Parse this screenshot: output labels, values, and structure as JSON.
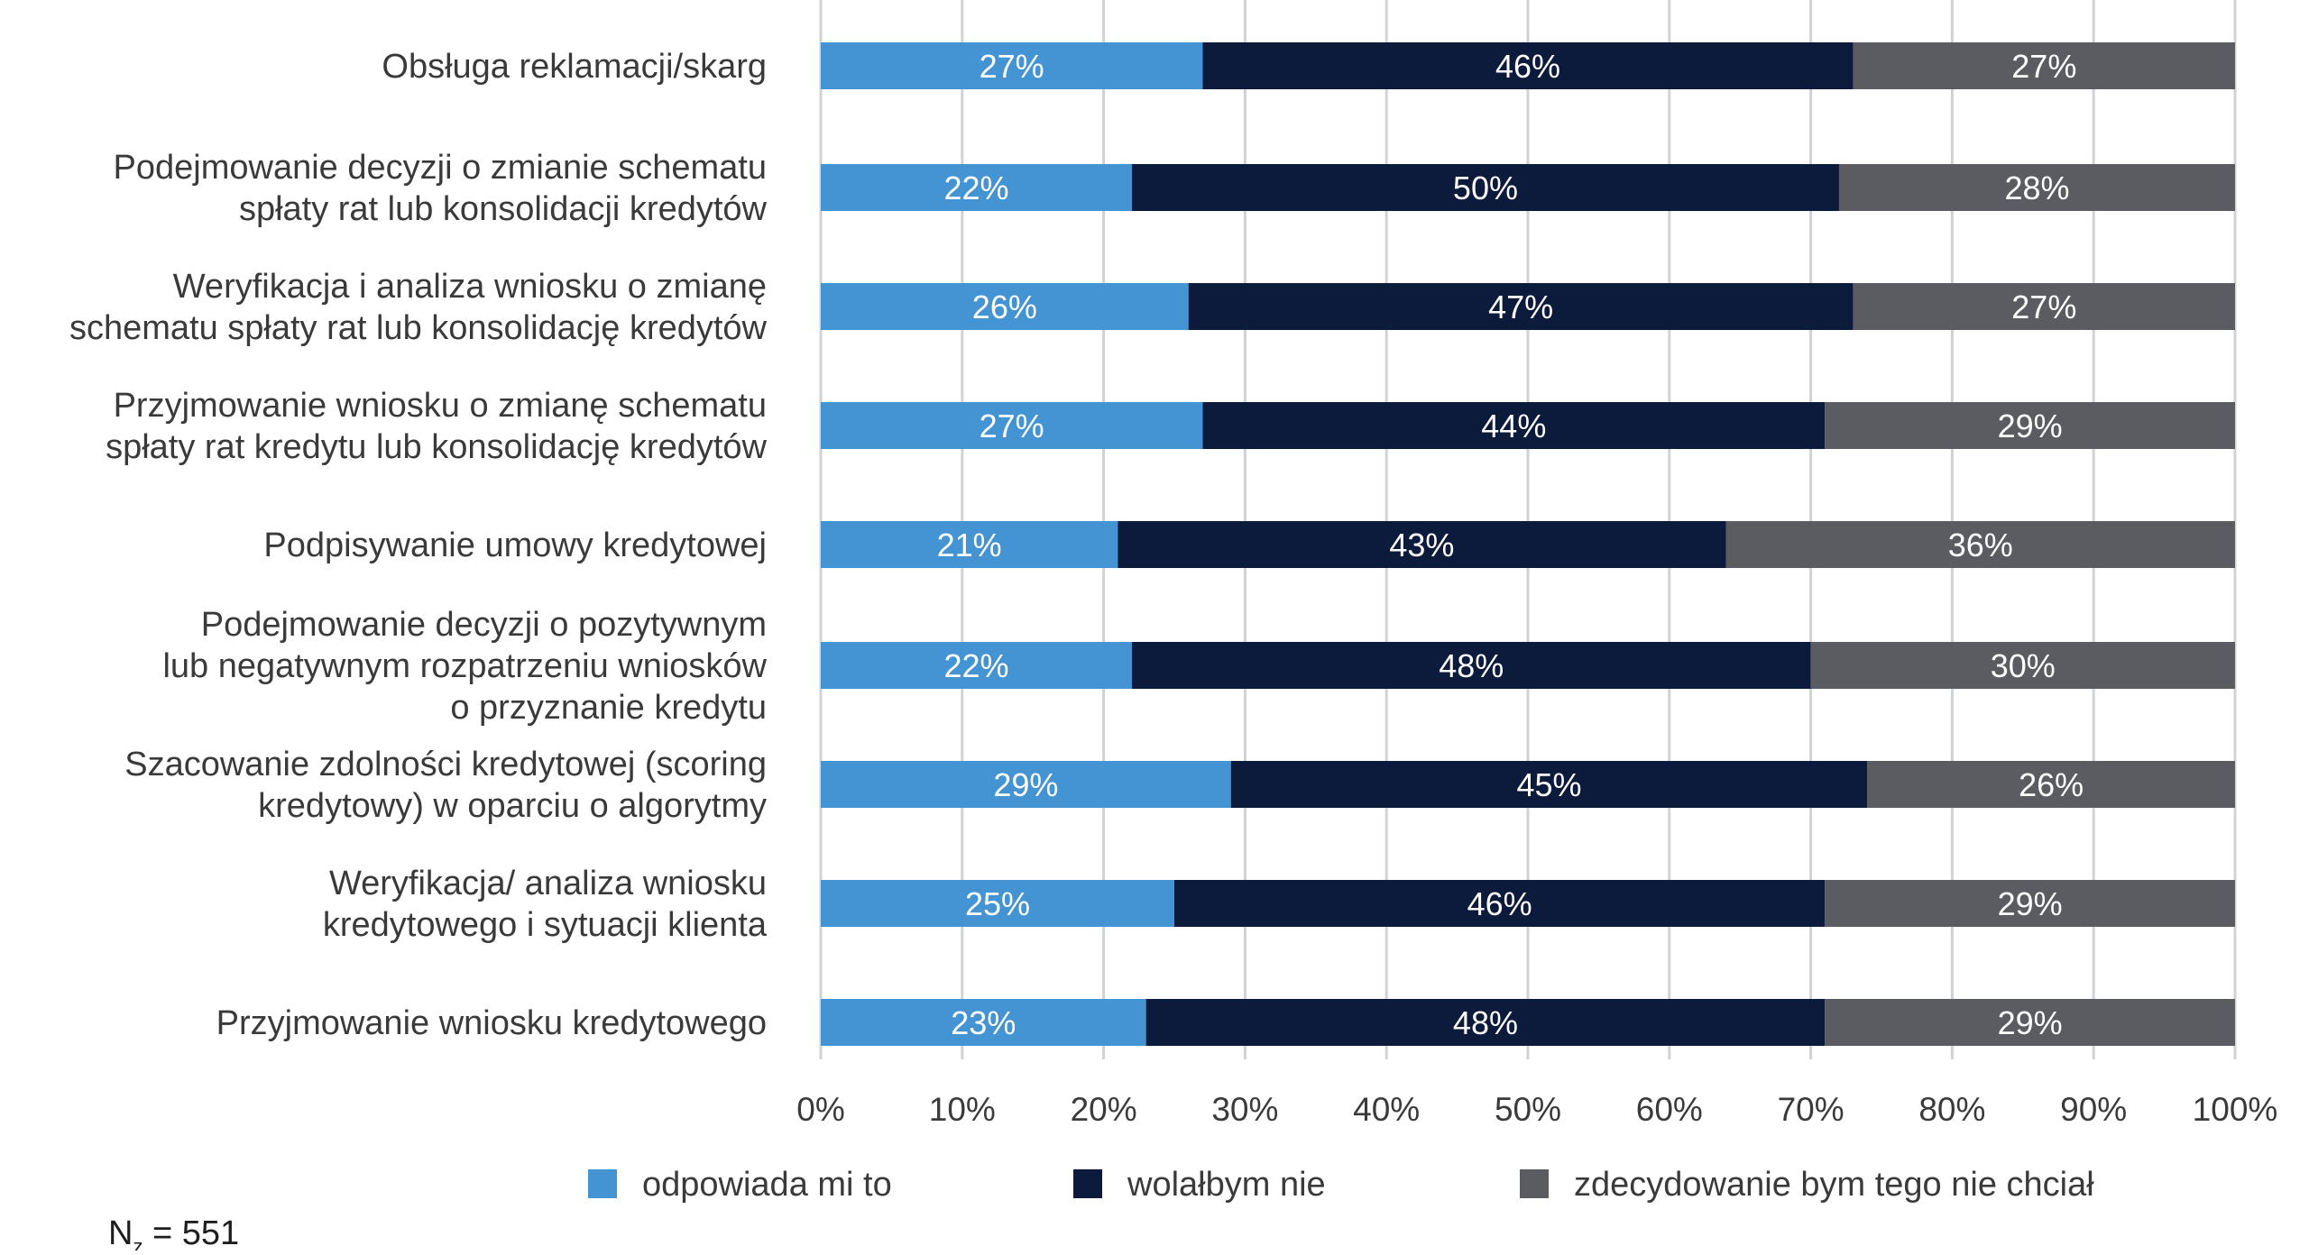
{
  "chart_data": {
    "type": "bar",
    "orientation": "horizontal",
    "stacked": true,
    "categories": [
      [
        "Obsługa reklamacji/skarg"
      ],
      [
        "Podejmowanie decyzji o zmianie schematu",
        "spłaty rat lub konsolidacji kredytów"
      ],
      [
        "Weryfikacja i analiza wniosku o zmianę",
        "schematu spłaty rat lub konsolidację kredytów"
      ],
      [
        "Przyjmowanie wniosku o zmianę schematu",
        "spłaty rat kredytu lub konsolidację kredytów"
      ],
      [
        "Podpisywanie umowy kredytowej"
      ],
      [
        "Podejmowanie decyzji o pozytywnym",
        "lub negatywnym rozpatrzeniu wniosków",
        "o przyznanie kredytu"
      ],
      [
        "Szacowanie zdolności kredytowej (scoring",
        "kredytowy) w oparciu o algorytmy"
      ],
      [
        "Weryfikacja/ analiza wniosku",
        "kredytowego i sytuacji klienta"
      ],
      [
        "Przyjmowanie wniosku kredytowego"
      ]
    ],
    "series": [
      {
        "name": "odpowiada mi to",
        "color": "#4493d3",
        "values": [
          27,
          22,
          26,
          27,
          21,
          22,
          29,
          25,
          23
        ]
      },
      {
        "name": "wolałbym nie",
        "color": "#0c1a3c",
        "values": [
          46,
          50,
          47,
          44,
          43,
          48,
          45,
          46,
          48
        ]
      },
      {
        "name": "zdecydowanie bym tego nie chciał",
        "color": "#5b5c61",
        "values": [
          27,
          28,
          27,
          29,
          36,
          30,
          26,
          29,
          29
        ]
      }
    ],
    "xlim": [
      0,
      100
    ],
    "ticks": [
      "0%",
      "10%",
      "20%",
      "30%",
      "40%",
      "50%",
      "60%",
      "70%",
      "80%",
      "90%",
      "100%"
    ],
    "value_suffix": "%",
    "grid": true,
    "legend_position": "bottom"
  },
  "footnote": {
    "main": "N",
    "sub": "z",
    "rest": " = 551"
  }
}
